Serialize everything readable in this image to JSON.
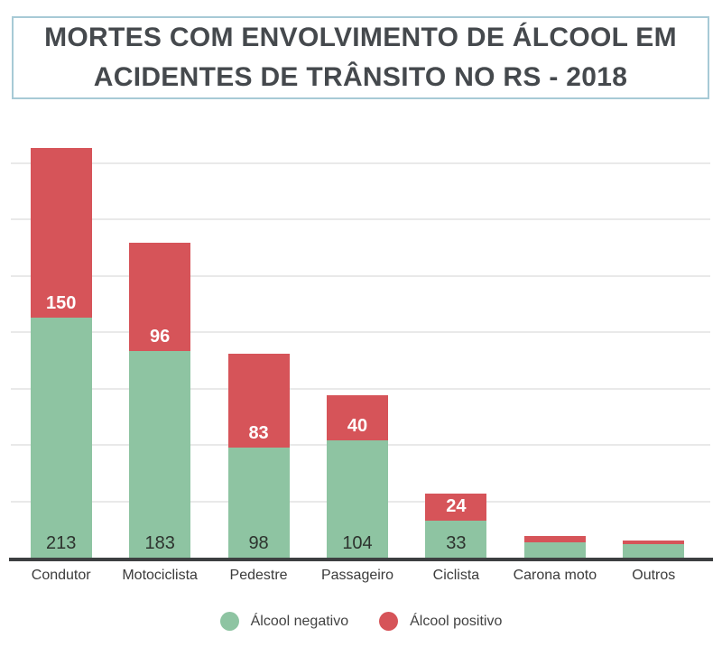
{
  "title": {
    "line1": "MORTES COM ENVOLVIMENTO DE ÁLCOOL EM",
    "line2": "ACIDENTES DE TRÂNSITO NO RS - 2018"
  },
  "colors": {
    "alcohol_negative": "#8ec4a2",
    "alcohol_positive": "#d65459",
    "axis_line": "#3d3f41",
    "gridline": "#e9e9e9",
    "title_text": "#45494d",
    "title_box_border": "#a7cad6",
    "label_on_green": "#2d332e",
    "label_on_red": "#ffffff",
    "background": "#ffffff"
  },
  "chart_data": {
    "type": "bar",
    "subtype": "stacked-vertical",
    "title": "MORTES COM ENVOLVIMENTO DE ÁLCOOL EM ACIDENTES DE TRÂNSITO NO RS - 2018",
    "categories": [
      "Condutor",
      "Motociclista",
      "Pedestre",
      "Passageiro",
      "Ciclista",
      "Carona moto",
      "Outros"
    ],
    "series": [
      {
        "name": "Álcool negativo",
        "color": "#8ec4a2",
        "values": [
          213,
          183,
          98,
          104,
          33,
          14,
          12
        ],
        "data_labels": [
          "213",
          "183",
          "98",
          "104",
          "33",
          "",
          ""
        ]
      },
      {
        "name": "Álcool positivo",
        "color": "#d65459",
        "values": [
          150,
          96,
          83,
          40,
          24,
          5,
          3
        ],
        "data_labels": [
          "150",
          "96",
          "83",
          "40",
          "24",
          "",
          ""
        ]
      }
    ],
    "stack_totals": [
      363,
      279,
      181,
      144,
      57,
      19,
      15
    ],
    "xlabel": "",
    "ylabel": "",
    "ylim": [
      0,
      380
    ],
    "gridlines": [
      50,
      100,
      150,
      200,
      250,
      300,
      350
    ],
    "y_tick_labels_visible": false,
    "grid": true,
    "legend_position": "bottom"
  }
}
